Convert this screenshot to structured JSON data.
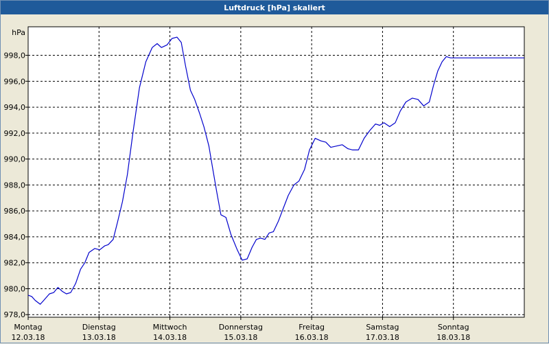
{
  "window": {
    "title": "Luftdruck [hPa] skaliert"
  },
  "chart_data": {
    "type": "line",
    "title": "Luftdruck [hPa] skaliert",
    "ylabel": "hPa",
    "xlabel": "",
    "ylim": [
      977.8,
      1000.2
    ],
    "xlim": [
      0,
      7
    ],
    "y_ticks": [
      "978,0",
      "980,0",
      "982,0",
      "984,0",
      "986,0",
      "988,0",
      "990,0",
      "992,0",
      "994,0",
      "996,0",
      "998,0"
    ],
    "x_ticks": [
      {
        "day": "Montag",
        "date": "12.03.18"
      },
      {
        "day": "Dienstag",
        "date": "13.03.18"
      },
      {
        "day": "Mittwoch",
        "date": "14.03.18"
      },
      {
        "day": "Donnerstag",
        "date": "15.03.18"
      },
      {
        "day": "Freitag",
        "date": "16.03.18"
      },
      {
        "day": "Samstag",
        "date": "17.03.18"
      },
      {
        "day": "Sonntag",
        "date": "18.03.18"
      }
    ],
    "grid": true,
    "legend": "none",
    "colors": {
      "line": "#0000cc",
      "grid": "#000000",
      "plot_bg": "#ffffff"
    },
    "series": [
      {
        "x": [
          0.0,
          0.05,
          0.1,
          0.17,
          0.22,
          0.3,
          0.36,
          0.42,
          0.48,
          0.54,
          0.6,
          0.67,
          0.74,
          0.8,
          0.86,
          0.94,
          1.01,
          1.08,
          1.13,
          1.2,
          1.26,
          1.33,
          1.4,
          1.48,
          1.57,
          1.66,
          1.75,
          1.82,
          1.88,
          1.96,
          2.03,
          2.1,
          2.16,
          2.22,
          2.29,
          2.35,
          2.42,
          2.48,
          2.55,
          2.6,
          2.66,
          2.72,
          2.79,
          2.86,
          2.95,
          3.02,
          3.09,
          3.16,
          3.22,
          3.28,
          3.34,
          3.4,
          3.46,
          3.53,
          3.6,
          3.67,
          3.75,
          3.82,
          3.9,
          3.97,
          4.05,
          4.13,
          4.2,
          4.27,
          4.35,
          4.43,
          4.51,
          4.58,
          4.66,
          4.74,
          4.82,
          4.9,
          4.96,
          5.02,
          5.1,
          5.18,
          5.25,
          5.33,
          5.42,
          5.5,
          5.58,
          5.66,
          5.72,
          5.78,
          5.84,
          5.9,
          5.96,
          6.03,
          6.1,
          6.17,
          6.24,
          6.3,
          6.36,
          6.43,
          6.5,
          6.57,
          6.64,
          6.7,
          6.76,
          6.83,
          6.9,
          6.96,
          7.0
        ],
        "y": [
          979.5,
          979.4,
          979.1,
          978.8,
          979.1,
          979.6,
          979.7,
          980.1,
          979.8,
          979.6,
          979.7,
          980.4,
          981.5,
          982.0,
          982.8,
          983.1,
          983.0,
          983.3,
          983.4,
          983.8,
          985.1,
          986.7,
          988.8,
          992.1,
          995.5,
          997.5,
          998.6,
          998.9,
          998.6,
          998.8,
          999.3,
          999.4,
          999.0,
          997.2,
          995.3,
          994.6,
          993.5,
          992.5,
          991.0,
          989.4,
          987.5,
          985.7,
          985.5,
          984.2,
          983.0,
          982.2,
          982.3,
          983.2,
          983.8,
          983.9,
          983.8,
          984.3,
          984.4,
          985.2,
          986.2,
          987.2,
          988.0,
          988.3,
          989.2,
          990.7,
          991.6,
          991.4,
          991.3,
          990.9,
          991.0,
          991.1,
          990.8,
          990.7,
          990.7,
          991.6,
          992.2,
          992.7,
          992.6,
          992.8,
          992.5,
          992.8,
          993.7,
          994.4,
          994.7,
          994.6,
          994.1,
          994.4,
          995.7,
          996.8,
          997.5,
          997.9,
          997.8,
          997.8,
          997.8,
          997.8,
          997.8,
          997.8,
          997.8,
          997.8,
          997.8,
          997.8,
          997.8,
          997.8,
          997.8,
          997.8,
          997.8,
          997.8,
          997.8
        ]
      }
    ]
  }
}
